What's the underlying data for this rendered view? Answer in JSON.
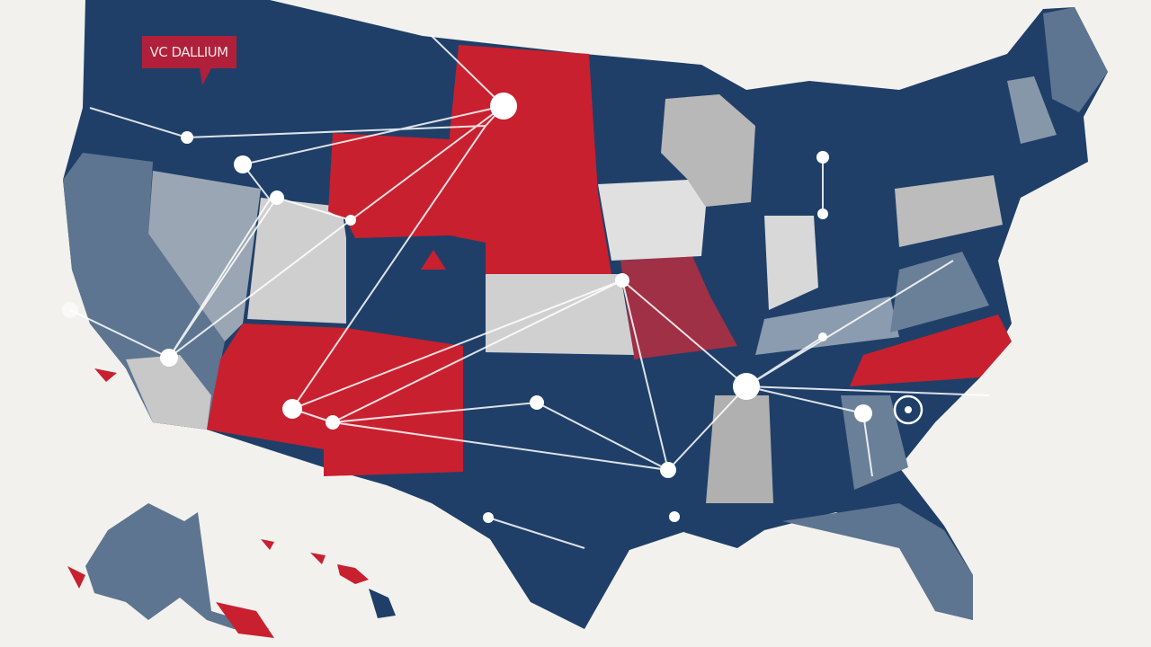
{
  "label": {
    "text": "VC DALLIUM"
  }
}
